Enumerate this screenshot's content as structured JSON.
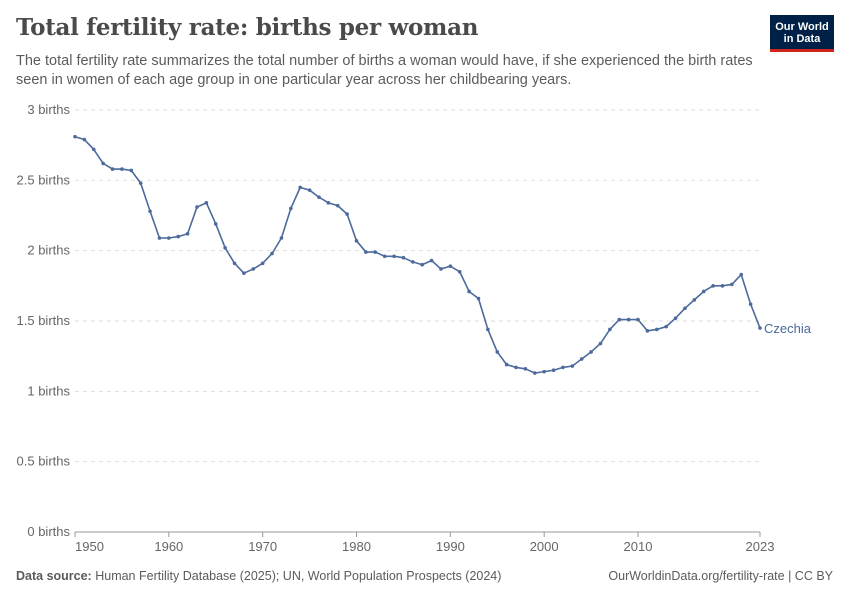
{
  "header": {
    "title": "Total fertility rate: births per woman",
    "subtitle": "The total fertility rate summarizes the total number of births a woman would have, if she experienced the birth rates seen in women of each age group in one particular year across her childbearing years.",
    "logo": "Our World in Data"
  },
  "footer": {
    "source_label": "Data source:",
    "source": "Human Fertility Database (2025); UN, World Population Prospects (2024)",
    "link": "OurWorldinData.org/fertility-rate | CC BY"
  },
  "chart_data": {
    "type": "line",
    "title": "Total fertility rate: births per woman",
    "xlim": [
      1950,
      2023
    ],
    "ylim": [
      0,
      3
    ],
    "grid": "horizontal dashed",
    "y_ticks": [
      {
        "v": 0,
        "label": "0 births"
      },
      {
        "v": 0.5,
        "label": "0.5 births"
      },
      {
        "v": 1,
        "label": "1 births"
      },
      {
        "v": 1.5,
        "label": "1.5 births"
      },
      {
        "v": 2,
        "label": "2 births"
      },
      {
        "v": 2.5,
        "label": "2.5 births"
      },
      {
        "v": 3,
        "label": "3 births"
      }
    ],
    "x_ticks": [
      "1950",
      "1960",
      "1970",
      "1980",
      "1990",
      "2000",
      "2010",
      "2023"
    ],
    "series": [
      {
        "name": "Czechia",
        "color": "#4c6a9c",
        "x": [
          1950,
          1951,
          1952,
          1953,
          1954,
          1955,
          1956,
          1957,
          1958,
          1959,
          1960,
          1961,
          1962,
          1963,
          1964,
          1965,
          1966,
          1967,
          1968,
          1969,
          1970,
          1971,
          1972,
          1973,
          1974,
          1975,
          1976,
          1977,
          1978,
          1979,
          1980,
          1981,
          1982,
          1983,
          1984,
          1985,
          1986,
          1987,
          1988,
          1989,
          1990,
          1991,
          1992,
          1993,
          1994,
          1995,
          1996,
          1997,
          1998,
          1999,
          2000,
          2001,
          2002,
          2003,
          2004,
          2005,
          2006,
          2007,
          2008,
          2009,
          2010,
          2011,
          2012,
          2013,
          2014,
          2015,
          2016,
          2017,
          2018,
          2019,
          2020,
          2021,
          2022,
          2023
        ],
        "y": [
          2.81,
          2.79,
          2.72,
          2.62,
          2.58,
          2.58,
          2.57,
          2.48,
          2.28,
          2.09,
          2.09,
          2.1,
          2.12,
          2.31,
          2.34,
          2.19,
          2.02,
          1.91,
          1.84,
          1.87,
          1.91,
          1.98,
          2.09,
          2.3,
          2.45,
          2.43,
          2.38,
          2.34,
          2.32,
          2.26,
          2.07,
          1.99,
          1.99,
          1.96,
          1.96,
          1.95,
          1.92,
          1.9,
          1.93,
          1.87,
          1.89,
          1.85,
          1.71,
          1.66,
          1.44,
          1.28,
          1.19,
          1.17,
          1.16,
          1.13,
          1.14,
          1.15,
          1.17,
          1.18,
          1.23,
          1.28,
          1.34,
          1.44,
          1.51,
          1.51,
          1.51,
          1.43,
          1.44,
          1.46,
          1.52,
          1.59,
          1.65,
          1.71,
          1.75,
          1.75,
          1.76,
          1.83,
          1.62,
          1.45
        ]
      }
    ]
  }
}
